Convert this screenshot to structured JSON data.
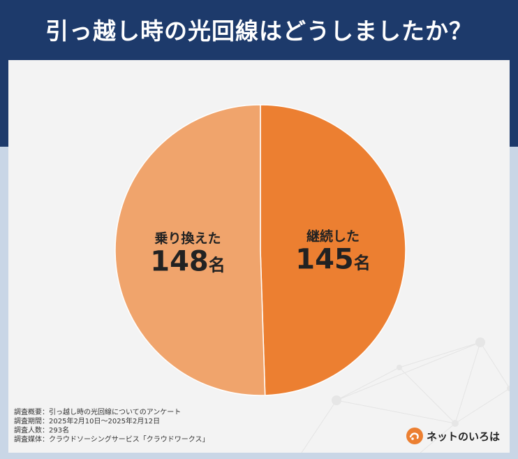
{
  "header": {
    "title": "引っ越し時の光回線はどうしましたか？"
  },
  "chart_data": {
    "type": "pie",
    "title": "引っ越し時の光回線はどうしましたか？",
    "unit": "名",
    "slices": [
      {
        "label": "継続した",
        "value": 145,
        "value_label": "145名",
        "color": "#ec7f31"
      },
      {
        "label": "乗り換えた",
        "value": 148,
        "value_label": "148名",
        "color": "#f0a46c"
      }
    ],
    "start": "top",
    "direction": "clockwise"
  },
  "notes": [
    "調査概要：引っ越し時の光回線についてのアンケート",
    "調査期間：2025年2月10日〜2025年2月12日",
    "調査人数：293名",
    "調査媒体：クラウドソーシングサービス「クラウドワークス」"
  ],
  "brand": {
    "name": "ネットのいろは",
    "icon": "logo-badge-icon",
    "color": "#ec7f31"
  },
  "colors": {
    "header_bg": "#1d3a6b",
    "card_bg": "#f3f3f3"
  }
}
